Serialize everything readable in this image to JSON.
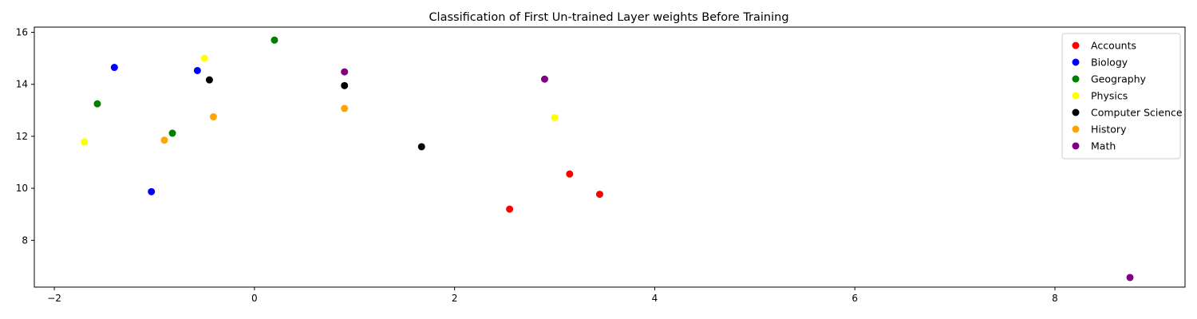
{
  "chart_data": {
    "type": "scatter",
    "title": "Classification of First Un-trained Layer weights Before Training",
    "xlabel": "",
    "ylabel": "",
    "xlim": [
      -2.2,
      9.3
    ],
    "ylim": [
      6.2,
      16.2
    ],
    "x_ticks": [
      -2,
      0,
      2,
      4,
      6,
      8
    ],
    "y_ticks": [
      8,
      10,
      12,
      14,
      16
    ],
    "grid": false,
    "legend_position": "top-right",
    "series": [
      {
        "name": "Accounts",
        "color": "#ff0000",
        "points": [
          [
            2.55,
            9.2
          ],
          [
            3.15,
            10.55
          ],
          [
            3.45,
            9.77
          ]
        ]
      },
      {
        "name": "Biology",
        "color": "#0000ff",
        "points": [
          [
            -1.4,
            14.65
          ],
          [
            -0.57,
            14.53
          ],
          [
            -1.03,
            9.87
          ]
        ]
      },
      {
        "name": "Geography",
        "color": "#008000",
        "points": [
          [
            -1.57,
            13.25
          ],
          [
            -0.82,
            12.12
          ],
          [
            0.2,
            15.7
          ]
        ]
      },
      {
        "name": "Physics",
        "color": "#ffff00",
        "points": [
          [
            -1.7,
            11.78
          ],
          [
            -0.5,
            15.0
          ],
          [
            3.0,
            12.72
          ]
        ]
      },
      {
        "name": "Computer Science",
        "color": "#000000",
        "points": [
          [
            -0.45,
            14.17
          ],
          [
            0.9,
            13.95
          ],
          [
            1.67,
            11.6
          ]
        ]
      },
      {
        "name": "History",
        "color": "#ffa500",
        "points": [
          [
            -0.9,
            11.85
          ],
          [
            -0.41,
            12.75
          ],
          [
            0.9,
            13.07
          ]
        ]
      },
      {
        "name": "Math",
        "color": "#800080",
        "points": [
          [
            0.9,
            14.48
          ],
          [
            2.9,
            14.2
          ],
          [
            8.75,
            6.57
          ]
        ]
      }
    ]
  }
}
